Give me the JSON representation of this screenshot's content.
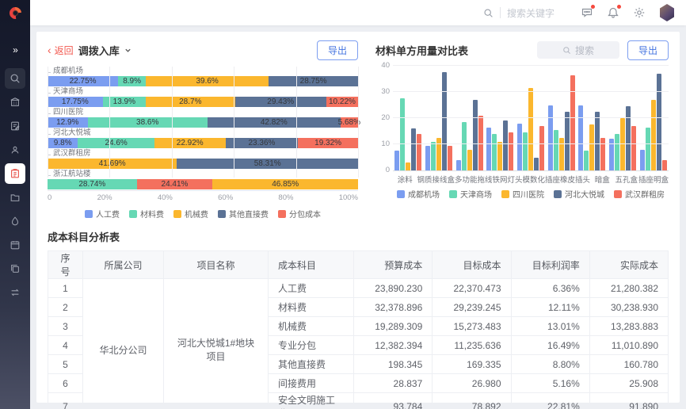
{
  "colors": {
    "blue": "#7b9df0",
    "green": "#66d8b4",
    "yellow": "#fbb72e",
    "slate": "#5b7295",
    "red": "#f4705e",
    "accent": "#4574e0",
    "badge": "#f5483d"
  },
  "topbar": {
    "search_placeholder": "搜索关键字",
    "icons": [
      "message-icon",
      "bell-icon",
      "gear-icon"
    ]
  },
  "sidebar": {
    "items": [
      "collapse",
      "search",
      "building",
      "document-edit",
      "user-audit",
      "cost-clipboard",
      "folder",
      "drop",
      "calendar",
      "copy",
      "transfer"
    ],
    "active_item": "cost-clipboard"
  },
  "left_panel": {
    "back_arrow": "‹",
    "back_label": "返回",
    "title": "调拨入库",
    "export_label": "导出"
  },
  "right_panel": {
    "title": "材料单方用量对比表",
    "search_placeholder": "搜索",
    "export_label": "导出"
  },
  "chart_data": [
    {
      "type": "bar",
      "subtype": "horizontal-stacked-percent",
      "title": "调拨入库",
      "x_ticks": [
        "0",
        "20%",
        "40%",
        "60%",
        "80%",
        "100%"
      ],
      "xlim": [
        0,
        100
      ],
      "legend": [
        {
          "label": "人工费",
          "color": "#7b9df0"
        },
        {
          "label": "材料费",
          "color": "#66d8b4"
        },
        {
          "label": "机械费",
          "color": "#fbb72e"
        },
        {
          "label": "其他直接费",
          "color": "#5b7295"
        },
        {
          "label": "分包成本",
          "color": "#f4705e"
        }
      ],
      "groups": [
        {
          "label": "成都机场",
          "segments": [
            {
              "text": "22.75%",
              "value": 22.75,
              "color": "#7b9df0"
            },
            {
              "text": "8.9%",
              "value": 8.9,
              "color": "#66d8b4"
            },
            {
              "text": "39.6%",
              "value": 39.6,
              "color": "#fbb72e"
            },
            {
              "text": "28.75%",
              "value": 28.75,
              "color": "#5b7295"
            }
          ]
        },
        {
          "label": "天津商场",
          "segments": [
            {
              "text": "17.75%",
              "value": 17.75,
              "color": "#7b9df0"
            },
            {
              "text": "13.9%",
              "value": 13.9,
              "color": "#66d8b4"
            },
            {
              "text": "28.7%",
              "value": 28.7,
              "color": "#fbb72e"
            },
            {
              "text": "29.43%",
              "value": 29.43,
              "color": "#5b7295"
            },
            {
              "text": "10.22%",
              "value": 10.22,
              "color": "#f4705e"
            }
          ]
        },
        {
          "label": "四川医院",
          "segments": [
            {
              "text": "12.9%",
              "value": 12.9,
              "color": "#7b9df0"
            },
            {
              "text": "38.6%",
              "value": 38.6,
              "color": "#66d8b4"
            },
            {
              "text": "42.82%",
              "value": 42.82,
              "color": "#5b7295"
            },
            {
              "text": "5.68%",
              "value": 5.68,
              "color": "#f4705e"
            }
          ]
        },
        {
          "label": "河北大悦城",
          "segments": [
            {
              "text": "9.8%",
              "value": 9.8,
              "color": "#7b9df0"
            },
            {
              "text": "24.6%",
              "value": 24.6,
              "color": "#66d8b4"
            },
            {
              "text": "22.92%",
              "value": 22.92,
              "color": "#fbb72e"
            },
            {
              "text": "23.36%",
              "value": 23.36,
              "color": "#5b7295"
            },
            {
              "text": "19.32%",
              "value": 19.32,
              "color": "#f4705e"
            }
          ]
        },
        {
          "label": "武汉群租房",
          "segments": [
            {
              "text": "41.69%",
              "value": 41.69,
              "color": "#fbb72e"
            },
            {
              "text": "58.31%",
              "value": 58.31,
              "color": "#5b7295"
            }
          ]
        },
        {
          "label": "浙江航站楼",
          "segments": [
            {
              "text": "28.74%",
              "value": 28.74,
              "color": "#66d8b4"
            },
            {
              "text": "24.41%",
              "value": 24.41,
              "color": "#f4705e"
            },
            {
              "text": "46.85%",
              "value": 46.85,
              "color": "#fbb72e"
            }
          ]
        }
      ]
    },
    {
      "type": "bar",
      "subtype": "grouped-vertical",
      "title": "材料单方用量对比表",
      "ylim": [
        0,
        40
      ],
      "y_ticks": [
        0,
        10,
        20,
        30,
        40
      ],
      "categories": [
        "涂料",
        "钢质接线盒",
        "多功能拖线",
        "铁网灯头",
        "模数化插座",
        "橡皮插头",
        "暗盒",
        "五孔盒",
        "插座明盒"
      ],
      "series": [
        {
          "name": "成都机场",
          "color": "#7b9df0",
          "values": [
            7.5,
            9.5,
            4,
            16.5,
            18,
            25,
            25,
            12,
            8
          ]
        },
        {
          "name": "天津商场",
          "color": "#66d8b4",
          "values": [
            27.5,
            11,
            18.5,
            14,
            14.5,
            15.5,
            7.5,
            14,
            16.5
          ]
        },
        {
          "name": "四川医院",
          "color": "#fbb72e",
          "values": [
            3,
            12.5,
            8,
            11,
            31.5,
            12.5,
            17.5,
            20,
            27
          ]
        },
        {
          "name": "河北大悦城",
          "color": "#5b7295",
          "values": [
            16,
            37.5,
            27,
            19,
            5,
            22.5,
            22.5,
            24.5,
            37
          ]
        },
        {
          "name": "武汉群租房",
          "color": "#f4705e",
          "values": [
            14,
            9.5,
            21,
            14.5,
            17,
            36.5,
            12.5,
            17,
            4
          ]
        }
      ]
    }
  ],
  "table": {
    "title": "成本科目分析表",
    "columns": [
      {
        "label": "序号",
        "align": "center"
      },
      {
        "label": "所属公司",
        "align": "center"
      },
      {
        "label": "项目名称",
        "align": "center"
      },
      {
        "label": "成本科目",
        "align": "left"
      },
      {
        "label": "预算成本",
        "align": "right"
      },
      {
        "label": "目标成本",
        "align": "right"
      },
      {
        "label": "目标利润率",
        "align": "right"
      },
      {
        "label": "实际成本",
        "align": "right"
      }
    ],
    "company": "华北分公司",
    "project": "河北大悦城1#地块项目",
    "rows": [
      {
        "idx": "1",
        "subject": "人工费",
        "budget": "23,890.230",
        "target": "22,370.473",
        "margin": "6.36%",
        "actual": "21,280.382"
      },
      {
        "idx": "2",
        "subject": "材料费",
        "budget": "32,378.896",
        "target": "29,239.245",
        "margin": "12.11%",
        "actual": "30,238.930"
      },
      {
        "idx": "3",
        "subject": "机械费",
        "budget": "19,289.309",
        "target": "15,273.483",
        "margin": "13.01%",
        "actual": "13,283.883"
      },
      {
        "idx": "4",
        "subject": "专业分包",
        "budget": "12,382.394",
        "target": "11,235.636",
        "margin": "16.49%",
        "actual": "11,010.890"
      },
      {
        "idx": "5",
        "subject": "其他直接费",
        "budget": "198.345",
        "target": "169.335",
        "margin": "8.80%",
        "actual": "160.780"
      },
      {
        "idx": "6",
        "subject": "间接费用",
        "budget": "28.837",
        "target": "26.980",
        "margin": "5.16%",
        "actual": "25.908"
      },
      {
        "idx": "7",
        "subject": "安全文明施工费",
        "budget": "93.784",
        "target": "78.892",
        "margin": "22.81%",
        "actual": "91.890"
      }
    ]
  }
}
